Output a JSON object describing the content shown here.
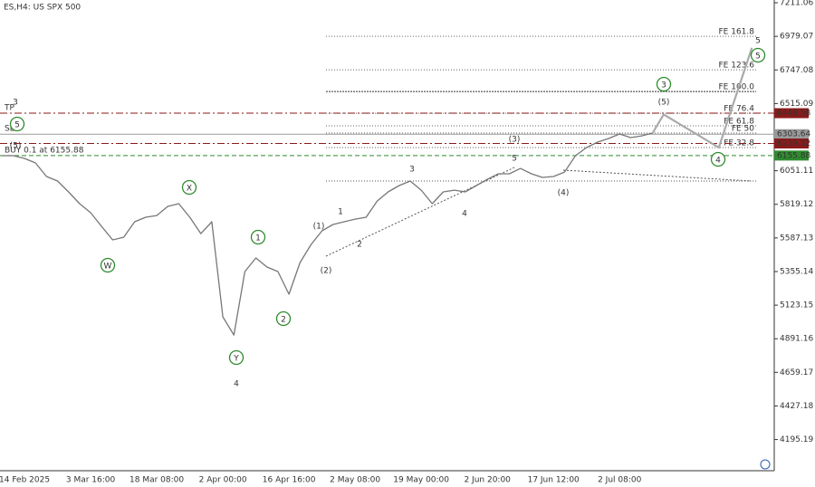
{
  "chart_data": {
    "type": "line",
    "title": "ES,H4:  US SPX 500",
    "categories": [
      null,
      null,
      "14 Feb 2025",
      null,
      null,
      null,
      null,
      null,
      "3 Mar 16:00",
      null,
      null,
      null,
      null,
      null,
      "18 Mar 08:00",
      null,
      null,
      null,
      null,
      null,
      "2 Apr 00:00",
      null,
      null,
      null,
      null,
      null,
      "16 Apr 16:00",
      null,
      null,
      null,
      null,
      null,
      "2 May 08:00",
      null,
      null,
      null,
      null,
      null,
      "19 May 00:00",
      null,
      null,
      null,
      null,
      null,
      "2 Jun 20:00",
      null,
      null,
      null,
      null,
      null,
      "17 Jun 12:00",
      null,
      null,
      null,
      null,
      null,
      "2 Jul 08:00",
      null,
      null,
      null,
      null,
      null,
      null,
      null,
      null,
      null,
      null,
      null,
      null
    ],
    "series": [
      {
        "color": "#777777",
        "values": [
          6155,
          6155,
          6136,
          6105,
          6011,
          5980,
          5905,
          5824,
          5761,
          5667,
          5574,
          5592,
          5699,
          5730,
          5742,
          5805,
          5824,
          5730,
          5617,
          5699,
          5042,
          4917,
          5355,
          5449,
          5386,
          5355,
          5199,
          5417,
          5542,
          5636,
          5680,
          5699,
          5717,
          5730,
          5842,
          5905,
          5949,
          5980,
          5917,
          5824,
          5905,
          5917,
          5905,
          5949,
          5992,
          6030,
          6030,
          6067,
          6030,
          6005,
          6011,
          6042,
          6155,
          6211,
          6249,
          6274,
          6305,
          6280,
          6292,
          6311,
          null,
          null,
          null,
          null,
          null,
          null,
          null,
          null,
          null
        ]
      },
      {
        "color": "#aaaaaa",
        "values": [
          null,
          null,
          null,
          null,
          null,
          null,
          null,
          null,
          null,
          null,
          null,
          null,
          null,
          null,
          null,
          null,
          null,
          null,
          null,
          null,
          null,
          null,
          null,
          null,
          null,
          null,
          null,
          null,
          null,
          null,
          null,
          null,
          null,
          null,
          null,
          null,
          null,
          null,
          null,
          null,
          null,
          null,
          null,
          null,
          null,
          null,
          null,
          null,
          null,
          null,
          null,
          null,
          null,
          null,
          null,
          null,
          null,
          null,
          null,
          6311,
          6440,
          6394,
          6348,
          6303,
          6257,
          6211,
          6441,
          6670,
          6900
        ]
      }
    ],
    "ylim": [
      3980,
      7230
    ],
    "yticks": [
      7211.06,
      6979.07,
      6747.08,
      6515.09,
      6051.11,
      5819.12,
      5587.13,
      5355.14,
      5123.15,
      4891.16,
      4659.17,
      4427.18,
      4195.19
    ],
    "price_levels": [
      {
        "label": "TP",
        "value": 6448.58,
        "color": "#8b1a1a"
      },
      {
        "label": "SL",
        "value": 6303.64,
        "color": "#9a9a9a"
      },
      {
        "value": 6239.32,
        "color": "#8b1a1a"
      },
      {
        "label": "BUY 0.1 at 6155.88",
        "value": 6155.88,
        "color": "#2e8b2e"
      }
    ],
    "fe_levels": [
      {
        "label": "FE 161.8",
        "value": 6979
      },
      {
        "label": "FE 123.6",
        "value": 6748
      },
      {
        "label": "FE 100.0",
        "value": 6598
      },
      {
        "label": "FE 76.4",
        "value": 6448
      },
      {
        "label": "FE 61.8",
        "value": 6361
      },
      {
        "label": "FE 50",
        "value": 6311
      },
      {
        "label": "FE 32.8",
        "value": 6211
      }
    ],
    "annotations": [
      {
        "text": "3",
        "color": "#8b1a1a",
        "style": "big"
      },
      {
        "text": "5",
        "color": "#2e8b2e",
        "style": "circle"
      },
      {
        "text": "(5)",
        "color": "#1f2a6b",
        "style": "paren"
      },
      {
        "text": "W",
        "color": "#2e8b2e",
        "style": "circle"
      },
      {
        "text": "X",
        "color": "#2e8b2e",
        "style": "circle"
      },
      {
        "text": "Y",
        "color": "#2e8b2e",
        "style": "circle"
      },
      {
        "text": "4",
        "color": "#8b1a1a",
        "style": "big"
      },
      {
        "text": "1",
        "color": "#2e8b2e",
        "style": "circle"
      },
      {
        "text": "2",
        "color": "#2e8b2e",
        "style": "circle"
      },
      {
        "text": "(1)",
        "color": "#1f2a6b",
        "style": "paren"
      },
      {
        "text": "(2)",
        "color": "#1f2a6b",
        "style": "paren"
      },
      {
        "text": "1",
        "color": "#8b1a1a",
        "style": "small"
      },
      {
        "text": "2",
        "color": "#8b1a1a",
        "style": "small"
      },
      {
        "text": "3",
        "color": "#8b1a1a",
        "style": "small"
      },
      {
        "text": "4",
        "color": "#8b1a1a",
        "style": "small"
      },
      {
        "text": "5",
        "color": "#8b1a1a",
        "style": "small"
      },
      {
        "text": "(3)",
        "color": "#1f2a6b",
        "style": "paren"
      },
      {
        "text": "(4)",
        "color": "#1f2a6b",
        "style": "paren"
      },
      {
        "text": "(5)",
        "color": "#1f2a6b",
        "style": "paren"
      },
      {
        "text": "3",
        "color": "#2e8b2e",
        "style": "circle"
      },
      {
        "text": "4",
        "color": "#2e8b2e",
        "style": "circle"
      },
      {
        "text": "5",
        "color": "#2e8b2e",
        "style": "circle"
      },
      {
        "text": "5",
        "color": "#8b1a1a",
        "style": "big"
      }
    ]
  }
}
